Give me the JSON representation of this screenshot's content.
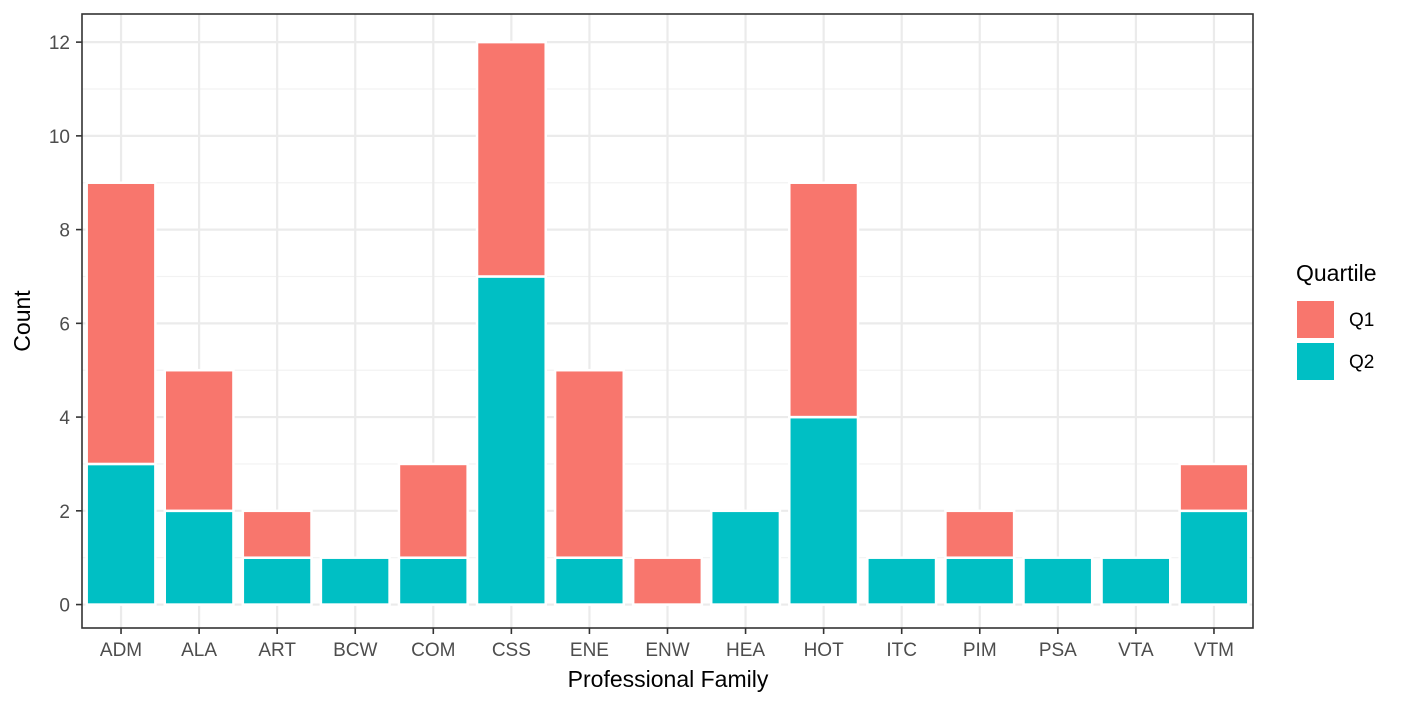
{
  "chart_data": {
    "type": "bar",
    "stacked": true,
    "categories": [
      "ADM",
      "ALA",
      "ART",
      "BCW",
      "COM",
      "CSS",
      "ENE",
      "ENW",
      "HEA",
      "HOT",
      "ITC",
      "PIM",
      "PSA",
      "VTA",
      "VTM"
    ],
    "series": [
      {
        "name": "Q1",
        "color": "#F8766D",
        "values": [
          6,
          3,
          1,
          0,
          2,
          5,
          4,
          1,
          0,
          5,
          0,
          1,
          0,
          0,
          1
        ]
      },
      {
        "name": "Q2",
        "color": "#00BFC4",
        "values": [
          3,
          2,
          1,
          1,
          1,
          7,
          1,
          0,
          2,
          4,
          1,
          1,
          1,
          1,
          2
        ]
      }
    ],
    "stack_order_bottom_to_top": [
      "Q2",
      "Q1"
    ],
    "xlabel": "Professional Family",
    "ylabel": "Count",
    "ylim": [
      -0.5,
      12.6
    ],
    "yticks": [
      0,
      2,
      4,
      6,
      8,
      10,
      12
    ],
    "grid": true,
    "legend": {
      "title": "Quartile",
      "position": "right",
      "entries": [
        "Q1",
        "Q2"
      ]
    }
  }
}
